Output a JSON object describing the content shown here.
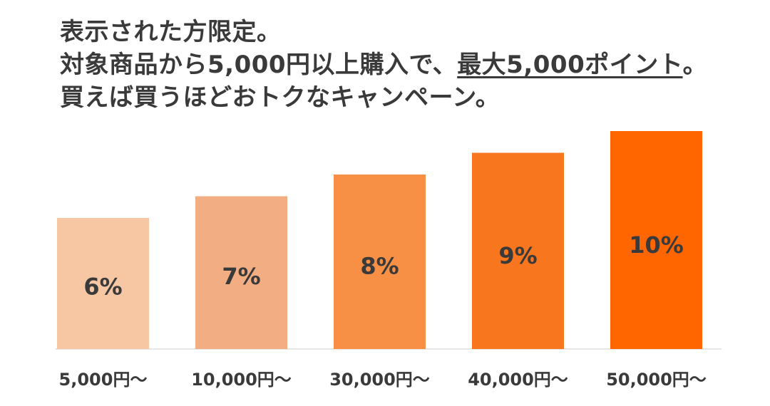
{
  "headline": {
    "line1": "表示された方限定。",
    "line2_prefix": "対象商品から5,000円以上購入で、",
    "line2_emphasis": "最大5,000ポイント",
    "line2_suffix": "。",
    "line3": "買えば買うほどおトクなキャンペーン。"
  },
  "colors": {
    "bars": [
      "#f7c7a4",
      "#f3ad82",
      "#f78f45",
      "#f7761e",
      "#ff6600"
    ],
    "baseline": "#e6e6e6",
    "text": "#3a3a3a"
  },
  "chart_data": {
    "type": "bar",
    "categories": [
      "5,000円～",
      "10,000円～",
      "30,000円～",
      "40,000円～",
      "50,000円～"
    ],
    "values": [
      6,
      7,
      8,
      9,
      10
    ],
    "value_labels": [
      "6%",
      "7%",
      "8%",
      "9%",
      "10%"
    ],
    "title": "",
    "xlabel": "",
    "ylabel": "",
    "ylim": [
      0,
      10
    ],
    "grid": false
  }
}
